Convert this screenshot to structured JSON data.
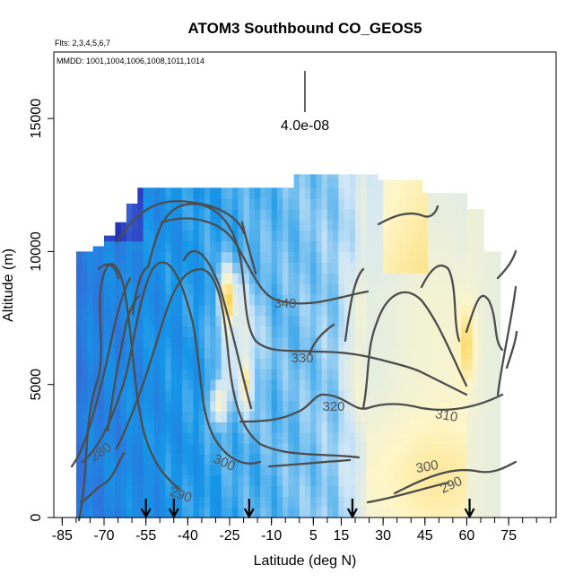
{
  "chart_data": {
    "type": "heatmap",
    "title": "ATOM3 Southbound CO_GEOS5",
    "subtitle_flights": "Flts: 2,3,4,5,6,7",
    "subtitle_dates": "MMDD: 1001,1004,1006,1008,1011,1014",
    "xlabel": "Latitude (deg N)",
    "ylabel": "Altitude (m)",
    "xlim": [
      -88,
      92
    ],
    "ylim": [
      0,
      17500
    ],
    "x_ticks": [
      "-85",
      "-70",
      "-55",
      "-40",
      "-25",
      "-10",
      "5",
      "15",
      "30",
      "45",
      "60",
      "75"
    ],
    "y_ticks": [
      "0",
      "5000",
      "10000",
      "15000"
    ],
    "scale_label": "4.0e-08",
    "color_scale": [
      "#1a1aa8",
      "#3a62d6",
      "#1596e8",
      "#cfe6f7",
      "#fff6c8",
      "#f7c72f",
      "#e0560c"
    ],
    "profile_latitudes": [
      -55,
      -45,
      -18,
      19,
      61
    ],
    "contours": [
      {
        "label": "280"
      },
      {
        "label": "290"
      },
      {
        "label": "290"
      },
      {
        "label": "300"
      },
      {
        "label": "300"
      },
      {
        "label": "310"
      },
      {
        "label": "320"
      },
      {
        "label": "330"
      },
      {
        "label": "340"
      }
    ]
  }
}
